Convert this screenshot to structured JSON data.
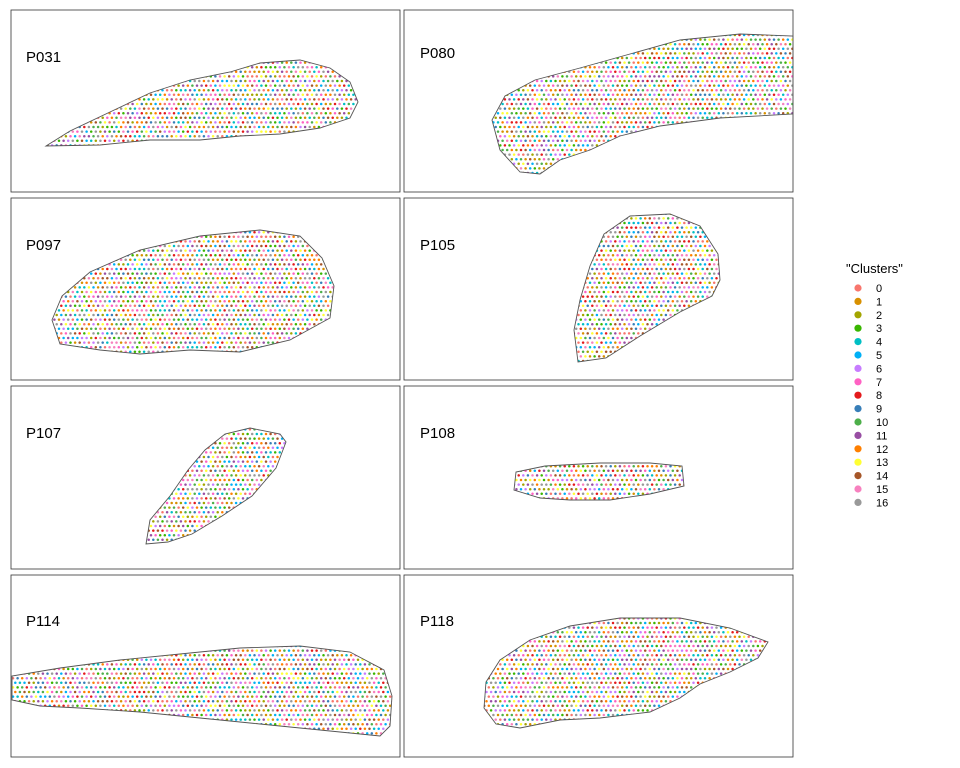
{
  "chart_data": {
    "type": "scatter",
    "legend": {
      "title": "\"Clusters\"",
      "placement": "right",
      "items": [
        {
          "label": "0",
          "color": "#F8766D"
        },
        {
          "label": "1",
          "color": "#D89000"
        },
        {
          "label": "2",
          "color": "#A3A500"
        },
        {
          "label": "3",
          "color": "#39B600"
        },
        {
          "label": "4",
          "color": "#00BFC4"
        },
        {
          "label": "5",
          "color": "#00B0F6"
        },
        {
          "label": "6",
          "color": "#C77CFF"
        },
        {
          "label": "7",
          "color": "#FF61C3"
        },
        {
          "label": "8",
          "color": "#E41A1C"
        },
        {
          "label": "9",
          "color": "#377EB8"
        },
        {
          "label": "10",
          "color": "#4DAF4A"
        },
        {
          "label": "11",
          "color": "#984EA3"
        },
        {
          "label": "12",
          "color": "#FF7F00"
        },
        {
          "label": "13",
          "color": "#FFFF33"
        },
        {
          "label": "14",
          "color": "#A65628"
        },
        {
          "label": "15",
          "color": "#F781BF"
        },
        {
          "label": "16",
          "color": "#999999"
        }
      ]
    },
    "panels": [
      {
        "label": "P031",
        "shape": "P031"
      },
      {
        "label": "P080",
        "shape": "P080"
      },
      {
        "label": "P097",
        "shape": "P097"
      },
      {
        "label": "P105",
        "shape": "P105"
      },
      {
        "label": "P107",
        "shape": "P107"
      },
      {
        "label": "P108",
        "shape": "P108"
      },
      {
        "label": "P114",
        "shape": "P114"
      },
      {
        "label": "P118",
        "shape": "P118"
      }
    ],
    "grid": false
  }
}
